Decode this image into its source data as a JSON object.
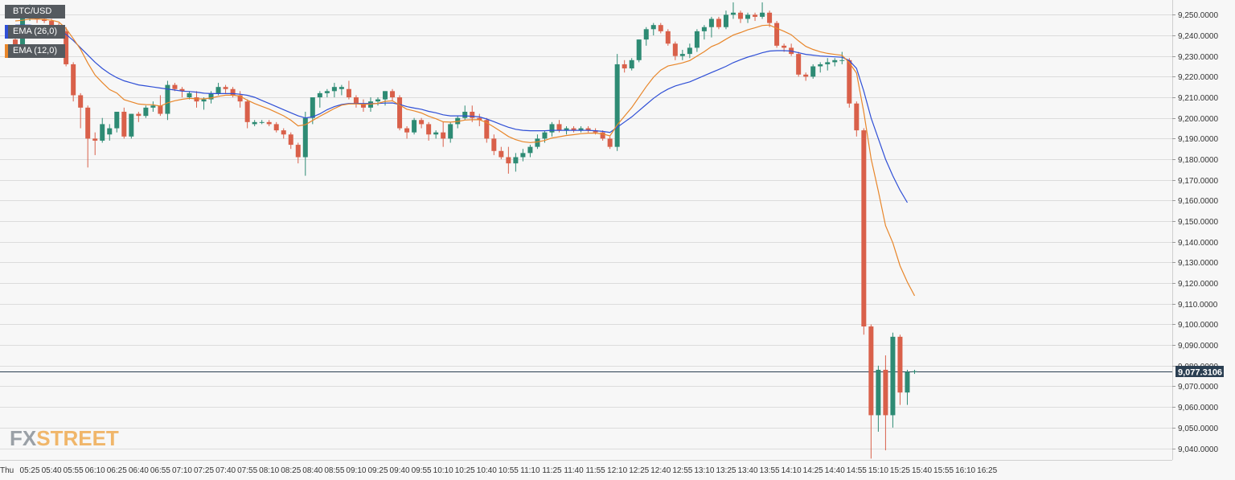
{
  "legend": {
    "symbol": "BTC/USD",
    "ema_slow": "EMA (26,0)",
    "ema_fast": "EMA (12,0)"
  },
  "watermark": {
    "fx": "FX",
    "street": "STREET"
  },
  "current_price_label": "9,077.3106",
  "colors": {
    "up": "#2e8b74",
    "down": "#d9604a",
    "ema_slow": "#2f4fd6",
    "ema_fast": "#e8862a",
    "price_line": "#2b3f52",
    "grid": "#dcdcdc",
    "axis_text": "#333333",
    "legend_bg": "#555a5f",
    "watermark_fx": "#9aa0a6",
    "watermark_street": "#f0b66a"
  },
  "chart_data": {
    "type": "candlestick",
    "symbol": "BTC/USD",
    "interval_minutes": 5,
    "start_time": "05:15",
    "x_ticks": [
      "Thu",
      "05:25",
      "05:40",
      "05:55",
      "06:10",
      "06:25",
      "06:40",
      "06:55",
      "07:10",
      "07:25",
      "07:40",
      "07:55",
      "08:10",
      "08:25",
      "08:40",
      "08:55",
      "09:10",
      "09:25",
      "09:40",
      "09:55",
      "10:10",
      "10:25",
      "10:40",
      "10:55",
      "11:10",
      "11:25",
      "11:40",
      "11:55",
      "12:10",
      "12:25",
      "12:40",
      "12:55",
      "13:10",
      "13:25",
      "13:40",
      "13:55",
      "14:10",
      "14:25",
      "14:40",
      "14:55",
      "15:10",
      "15:25",
      "15:40",
      "15:55",
      "16:10",
      "16:25"
    ],
    "y_ticks": [
      "9,040.0000",
      "9,050.0000",
      "9,060.0000",
      "9,070.0000",
      "9,080.0000",
      "9,090.0000",
      "9,100.0000",
      "9,110.0000",
      "9,120.0000",
      "9,130.0000",
      "9,140.0000",
      "9,150.0000",
      "9,160.0000",
      "9,170.0000",
      "9,180.0000",
      "9,190.0000",
      "9,200.0000",
      "9,210.0000",
      "9,220.0000",
      "9,230.0000",
      "9,240.0000",
      "9,250.0000"
    ],
    "ylim": [
      9035,
      9257
    ],
    "current_price": 9077.3106,
    "candles": [
      [
        9238,
        9240,
        9232,
        9235
      ],
      [
        9235,
        9250,
        9233,
        9249
      ],
      [
        9249,
        9255,
        9247,
        9251
      ],
      [
        9251,
        9252,
        9246,
        9248
      ],
      [
        9248,
        9249,
        9246,
        9247
      ],
      [
        9247,
        9248,
        9244,
        9245
      ],
      [
        9245,
        9246,
        9240,
        9242
      ],
      [
        9242,
        9244,
        9225,
        9226
      ],
      [
        9226,
        9227,
        9208,
        9211
      ],
      [
        9211,
        9212,
        9195,
        9205
      ],
      [
        9205,
        9206,
        9176,
        9190
      ],
      [
        9190,
        9193,
        9182,
        9189
      ],
      [
        9189,
        9200,
        9188,
        9197
      ],
      [
        9192,
        9197,
        9189,
        9195
      ],
      [
        9195,
        9203,
        9193,
        9203
      ],
      [
        9203,
        9205,
        9190,
        9191
      ],
      [
        9191,
        9202,
        9190,
        9202
      ],
      [
        9202,
        9203,
        9198,
        9201
      ],
      [
        9201,
        9206,
        9200,
        9205
      ],
      [
        9205,
        9208,
        9203,
        9206
      ],
      [
        9206,
        9211,
        9201,
        9202
      ],
      [
        9202,
        9218,
        9199,
        9216
      ],
      [
        9216,
        9217,
        9213,
        9214
      ],
      [
        9214,
        9215,
        9210,
        9213
      ],
      [
        9210,
        9213,
        9209,
        9212
      ],
      [
        9210,
        9213,
        9205,
        9208
      ],
      [
        9208,
        9210,
        9204,
        9209
      ],
      [
        9209,
        9213,
        9207,
        9212
      ],
      [
        9212,
        9217,
        9211,
        9215
      ],
      [
        9215,
        9216,
        9212,
        9214
      ],
      [
        9214,
        9215,
        9210,
        9211
      ],
      [
        9211,
        9213,
        9205,
        9208
      ],
      [
        9208,
        9209,
        9195,
        9198
      ],
      [
        9197,
        9199,
        9196,
        9198
      ],
      [
        9198,
        9199,
        9197,
        9198
      ],
      [
        9198,
        9199,
        9196,
        9197
      ],
      [
        9197,
        9198,
        9193,
        9194
      ],
      [
        9194,
        9195,
        9190,
        9192
      ],
      [
        9192,
        9193,
        9185,
        9187
      ],
      [
        9187,
        9188,
        9178,
        9181
      ],
      [
        9181,
        9203,
        9172,
        9200
      ],
      [
        9200,
        9210,
        9197,
        9210
      ],
      [
        9210,
        9213,
        9205,
        9212
      ],
      [
        9212,
        9214,
        9210,
        9213
      ],
      [
        9213,
        9217,
        9210,
        9215
      ],
      [
        9214,
        9216,
        9211,
        9215
      ],
      [
        9214,
        9218,
        9209,
        9210
      ],
      [
        9210,
        9211,
        9205,
        9207
      ],
      [
        9207,
        9209,
        9203,
        9205
      ],
      [
        9205,
        9210,
        9203,
        9208
      ],
      [
        9208,
        9210,
        9206,
        9209
      ],
      [
        9209,
        9213,
        9206,
        9213
      ],
      [
        9213,
        9214,
        9208,
        9210
      ],
      [
        9210,
        9211,
        9194,
        9195
      ],
      [
        9195,
        9196,
        9190,
        9193
      ],
      [
        9193,
        9200,
        9192,
        9199
      ],
      [
        9199,
        9200,
        9195,
        9197
      ],
      [
        9197,
        9198,
        9189,
        9192
      ],
      [
        9192,
        9194,
        9190,
        9193
      ],
      [
        9193,
        9198,
        9186,
        9190
      ],
      [
        9190,
        9198,
        9188,
        9197
      ],
      [
        9197,
        9201,
        9195,
        9200
      ],
      [
        9200,
        9206,
        9199,
        9203
      ],
      [
        9203,
        9206,
        9198,
        9200
      ],
      [
        9200,
        9202,
        9196,
        9199
      ],
      [
        9199,
        9200,
        9188,
        9190
      ],
      [
        9190,
        9192,
        9182,
        9184
      ],
      [
        9184,
        9186,
        9180,
        9181
      ],
      [
        9181,
        9186,
        9173,
        9178
      ],
      [
        9178,
        9183,
        9174,
        9181
      ],
      [
        9181,
        9185,
        9179,
        9183
      ],
      [
        9183,
        9187,
        9181,
        9186
      ],
      [
        9186,
        9192,
        9185,
        9190
      ],
      [
        9190,
        9194,
        9188,
        9193
      ],
      [
        9193,
        9198,
        9191,
        9197
      ],
      [
        9197,
        9199,
        9193,
        9194
      ],
      [
        9194,
        9196,
        9192,
        9195
      ],
      [
        9195,
        9196,
        9193,
        9194
      ],
      [
        9194,
        9196,
        9193,
        9195
      ],
      [
        9195,
        9196,
        9193,
        9194
      ],
      [
        9194,
        9195,
        9192,
        9193
      ],
      [
        9193,
        9194,
        9189,
        9190
      ],
      [
        9190,
        9191,
        9185,
        9186
      ],
      [
        9186,
        9231,
        9184,
        9226
      ],
      [
        9226,
        9228,
        9222,
        9224
      ],
      [
        9224,
        9229,
        9223,
        9228
      ],
      [
        9228,
        9238,
        9227,
        9238
      ],
      [
        9238,
        9244,
        9235,
        9243
      ],
      [
        9243,
        9246,
        9240,
        9245
      ],
      [
        9245,
        9246,
        9241,
        9242
      ],
      [
        9242,
        9243,
        9235,
        9236
      ],
      [
        9236,
        9237,
        9228,
        9230
      ],
      [
        9230,
        9233,
        9228,
        9231
      ],
      [
        9231,
        9236,
        9229,
        9234
      ],
      [
        9234,
        9243,
        9232,
        9242
      ],
      [
        9242,
        9245,
        9238,
        9244
      ],
      [
        9244,
        9249,
        9239,
        9248
      ],
      [
        9248,
        9249,
        9243,
        9244
      ],
      [
        9244,
        9252,
        9243,
        9250
      ],
      [
        9250,
        9256,
        9248,
        9251
      ],
      [
        9251,
        9252,
        9246,
        9248
      ],
      [
        9248,
        9251,
        9246,
        9250
      ],
      [
        9250,
        9251,
        9247,
        9249
      ],
      [
        9249,
        9256,
        9248,
        9251
      ],
      [
        9251,
        9252,
        9244,
        9246
      ],
      [
        9246,
        9247,
        9234,
        9235
      ],
      [
        9235,
        9236,
        9232,
        9234
      ],
      [
        9234,
        9236,
        9230,
        9231
      ],
      [
        9231,
        9232,
        9220,
        9221
      ],
      [
        9221,
        9222,
        9218,
        9220
      ],
      [
        9220,
        9226,
        9219,
        9225
      ],
      [
        9225,
        9227,
        9222,
        9226
      ],
      [
        9226,
        9229,
        9223,
        9227
      ],
      [
        9227,
        9229,
        9225,
        9228
      ],
      [
        9228,
        9232,
        9226,
        9228
      ],
      [
        9228,
        9229,
        9205,
        9207
      ],
      [
        9207,
        9208,
        9191,
        9194
      ],
      [
        9194,
        9195,
        9095,
        9099
      ],
      [
        9099,
        9100,
        9035,
        9056
      ],
      [
        9056,
        9080,
        9048,
        9078
      ],
      [
        9078,
        9085,
        9039,
        9056
      ],
      [
        9056,
        9096,
        9050,
        9094
      ],
      [
        9094,
        9095,
        9061,
        9067
      ],
      [
        9067,
        9078,
        9061,
        9077
      ],
      [
        9077,
        9078,
        9076,
        9077.3
      ]
    ],
    "ema_26": [
      9245,
      9245,
      9245,
      9244.5,
      9244.2,
      9243.5,
      9242.5,
      9240.5,
      9237.5,
      9234,
      9230.5,
      9227,
      9224,
      9221.5,
      9219.5,
      9218,
      9217,
      9216,
      9215.5,
      9215,
      9214.5,
      9214,
      9213.5,
      9213,
      9212.8,
      9212.5,
      9212,
      9211.8,
      9211.8,
      9211.8,
      9211.8,
      9211.5,
      9211,
      9210,
      9208.5,
      9207,
      9205.5,
      9204,
      9202.5,
      9201,
      9200,
      9200.5,
      9202,
      9204,
      9205.5,
      9206.5,
      9207,
      9207,
      9207,
      9207,
      9207,
      9207.2,
      9207.3,
      9206.5,
      9205.5,
      9204.8,
      9204.2,
      9203.2,
      9202.5,
      9201.5,
      9201,
      9201,
      9201,
      9200.8,
      9200.5,
      9199.5,
      9198.2,
      9196.8,
      9195.5,
      9194.5,
      9194,
      9193.8,
      9193.8,
      9193.8,
      9194,
      9194,
      9194,
      9194,
      9194,
      9194,
      9193.8,
      9193.5,
      9193,
      9195.5,
      9198,
      9200.5,
      9203.5,
      9206.5,
      9209.5,
      9212,
      9214,
      9215.5,
      9216.5,
      9217.5,
      9219,
      9220.5,
      9222,
      9223.5,
      9225,
      9226.8,
      9228.2,
      9229.5,
      9230.5,
      9231.6,
      9232.4,
      9232.6,
      9232.6,
      9232.4,
      9231.6,
      9230.8,
      9230.4,
      9230,
      9229.8,
      9229.6,
      9229.4,
      9227.8,
      9224,
      9213,
      9200,
      9190,
      9180,
      9172,
      9165,
      9159
    ]
  }
}
